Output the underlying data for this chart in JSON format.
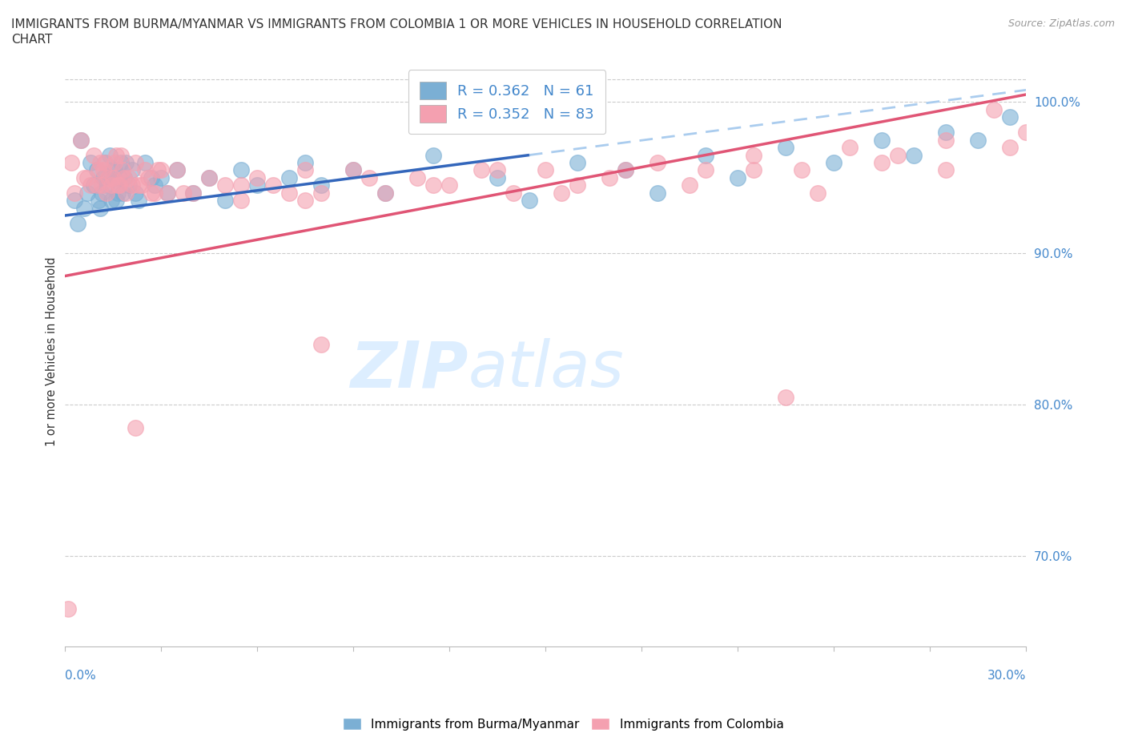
{
  "title_line1": "IMMIGRANTS FROM BURMA/MYANMAR VS IMMIGRANTS FROM COLOMBIA 1 OR MORE VEHICLES IN HOUSEHOLD CORRELATION",
  "title_line2": "CHART",
  "source": "Source: ZipAtlas.com",
  "ylabel": "1 or more Vehicles in Household",
  "yticks": [
    70,
    80,
    90,
    100
  ],
  "ytick_labels": [
    "70.0%",
    "80.0%",
    "90.0%",
    "100.0%"
  ],
  "xmin": 0.0,
  "xmax": 30.0,
  "ymin": 64.0,
  "ymax": 103.0,
  "legend_label_blue": "R = 0.362   N = 61",
  "legend_label_pink": "R = 0.352   N = 83",
  "blue_color": "#7BAFD4",
  "pink_color": "#F4A0B0",
  "trendline_blue_color": "#3366BB",
  "trendline_pink_color": "#E05575",
  "dashed_color": "#AACCEE",
  "legend_color": "#4488CC",
  "blue_scatter_x": [
    0.3,
    0.5,
    0.7,
    0.8,
    1.0,
    1.1,
    1.2,
    1.3,
    1.4,
    1.5,
    1.6,
    1.7,
    1.8,
    1.9,
    2.0,
    2.1,
    2.2,
    2.3,
    2.5,
    2.7,
    2.8,
    3.0,
    3.2,
    3.5,
    4.0,
    4.5,
    5.0,
    5.5,
    6.0,
    7.0,
    7.5,
    8.0,
    9.0,
    10.0,
    11.5,
    13.5,
    14.5,
    16.0,
    17.5,
    18.5,
    20.0,
    21.0,
    22.5,
    24.0,
    25.5,
    26.5,
    27.5,
    28.5,
    29.5,
    0.4,
    0.6,
    0.9,
    1.05,
    1.15,
    1.25,
    1.35,
    1.45,
    1.55,
    1.65,
    1.75,
    1.85
  ],
  "blue_scatter_y": [
    93.5,
    97.5,
    94.0,
    96.0,
    95.5,
    93.0,
    95.0,
    94.5,
    96.5,
    95.5,
    93.5,
    95.0,
    94.0,
    96.0,
    94.5,
    95.5,
    94.0,
    93.5,
    96.0,
    95.0,
    94.5,
    95.0,
    94.0,
    95.5,
    94.0,
    95.0,
    93.5,
    95.5,
    94.5,
    95.0,
    96.0,
    94.5,
    95.5,
    94.0,
    96.5,
    95.0,
    93.5,
    96.0,
    95.5,
    94.0,
    96.5,
    95.0,
    97.0,
    96.0,
    97.5,
    96.5,
    98.0,
    97.5,
    99.0,
    92.0,
    93.0,
    94.5,
    93.5,
    94.0,
    96.0,
    95.0,
    93.5,
    95.5,
    94.0,
    96.0,
    95.0
  ],
  "pink_scatter_x": [
    0.2,
    0.5,
    0.7,
    0.9,
    1.0,
    1.1,
    1.2,
    1.3,
    1.5,
    1.6,
    1.7,
    1.8,
    1.9,
    2.0,
    2.1,
    2.2,
    2.3,
    2.5,
    2.7,
    2.9,
    3.2,
    3.5,
    4.0,
    4.5,
    5.0,
    5.5,
    6.0,
    6.5,
    7.0,
    7.5,
    8.0,
    9.0,
    10.0,
    11.0,
    12.0,
    13.0,
    14.0,
    15.0,
    16.0,
    17.0,
    18.5,
    20.0,
    21.5,
    23.0,
    24.5,
    26.0,
    27.5,
    29.0,
    0.3,
    0.6,
    0.8,
    1.05,
    1.15,
    1.25,
    1.35,
    1.45,
    1.55,
    1.65,
    1.75,
    1.85,
    2.4,
    2.6,
    2.8,
    3.0,
    3.7,
    5.5,
    7.5,
    9.5,
    11.5,
    13.5,
    15.5,
    17.5,
    19.5,
    21.5,
    23.5,
    25.5,
    27.5,
    29.5,
    30.0,
    22.5,
    0.1,
    2.2,
    8.0
  ],
  "pink_scatter_y": [
    96.0,
    97.5,
    95.0,
    96.5,
    94.5,
    96.0,
    95.5,
    94.0,
    95.0,
    96.5,
    94.5,
    95.5,
    94.0,
    95.0,
    94.5,
    96.0,
    94.5,
    95.5,
    94.0,
    95.5,
    94.0,
    95.5,
    94.0,
    95.0,
    94.5,
    93.5,
    95.0,
    94.5,
    94.0,
    95.5,
    94.0,
    95.5,
    94.0,
    95.0,
    94.5,
    95.5,
    94.0,
    95.5,
    94.5,
    95.0,
    96.0,
    95.5,
    96.5,
    95.5,
    97.0,
    96.5,
    97.5,
    99.5,
    94.0,
    95.0,
    94.5,
    95.5,
    94.5,
    96.0,
    95.0,
    94.5,
    96.0,
    94.5,
    96.5,
    95.0,
    94.5,
    95.0,
    94.0,
    95.5,
    94.0,
    94.5,
    93.5,
    95.0,
    94.5,
    95.5,
    94.0,
    95.5,
    94.5,
    95.5,
    94.0,
    96.0,
    95.5,
    97.0,
    98.0,
    80.5,
    66.5,
    78.5,
    84.0
  ],
  "trendline_blue_x0": 0.0,
  "trendline_blue_y0": 92.5,
  "trendline_blue_x1": 14.5,
  "trendline_blue_y1": 96.5,
  "trendline_dash_x0": 14.5,
  "trendline_dash_y0": 96.5,
  "trendline_dash_x1": 30.0,
  "trendline_dash_y1": 100.8,
  "trendline_pink_x0": 0.0,
  "trendline_pink_y0": 88.5,
  "trendline_pink_x1": 30.0,
  "trendline_pink_y1": 100.5
}
